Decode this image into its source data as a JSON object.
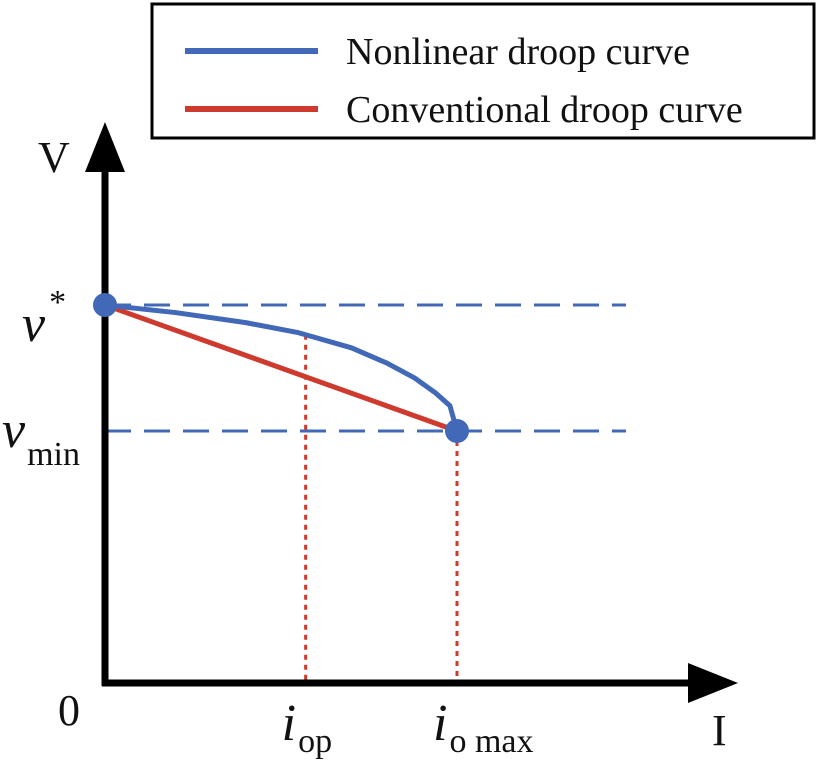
{
  "chart_data": {
    "type": "line",
    "title": "",
    "xlabel": "I",
    "ylabel": "V",
    "origin_label": "0",
    "xlim": [
      0,
      1.75
    ],
    "ylim": [
      0,
      3.35
    ],
    "legend": {
      "position": "top-right",
      "entries": [
        {
          "label": "Nonlinear droop curve",
          "color": "#4169b8"
        },
        {
          "label": "Conventional droop curve",
          "color": "#cf3a2e"
        }
      ]
    },
    "series": [
      {
        "name": "Nonlinear droop curve",
        "color": "#4169b8",
        "x": [
          0,
          0.2,
          0.4,
          0.55,
          0.7,
          0.8,
          0.88,
          0.94,
          0.98,
          1.0
        ],
        "y": [
          3.0,
          2.94,
          2.86,
          2.78,
          2.66,
          2.54,
          2.42,
          2.3,
          2.2,
          2.0
        ]
      },
      {
        "name": "Conventional droop curve",
        "color": "#cf3a2e",
        "x": [
          0,
          1.0
        ],
        "y": [
          3.0,
          2.0
        ]
      }
    ],
    "markers": [
      {
        "name": "v-star-point",
        "x": 0,
        "y": 3.0,
        "color": "#4169b8"
      },
      {
        "name": "v-min-point",
        "x": 1.0,
        "y": 2.0,
        "color": "#4169b8"
      }
    ],
    "reference_lines": {
      "horizontal": [
        {
          "name": "v-star",
          "y": 3.0,
          "color": "#4169b8",
          "style": "dashed",
          "label_main": "v",
          "label_sub": "",
          "label_sup": "*"
        },
        {
          "name": "v-min",
          "y": 2.0,
          "color": "#4169b8",
          "style": "dashed",
          "label_main": "v",
          "label_sub": "min",
          "label_sup": ""
        }
      ],
      "vertical": [
        {
          "name": "i-op",
          "x": 0.57,
          "color": "#cf3a2e",
          "style": "dotted",
          "label_main": "i",
          "label_sub": "op"
        },
        {
          "name": "i-omax",
          "x": 1.0,
          "color": "#cf3a2e",
          "style": "dotted",
          "label_main": "i",
          "label_sub": "o max"
        }
      ]
    },
    "hline_extent_x": 1.48,
    "axis_color": "#000000"
  }
}
